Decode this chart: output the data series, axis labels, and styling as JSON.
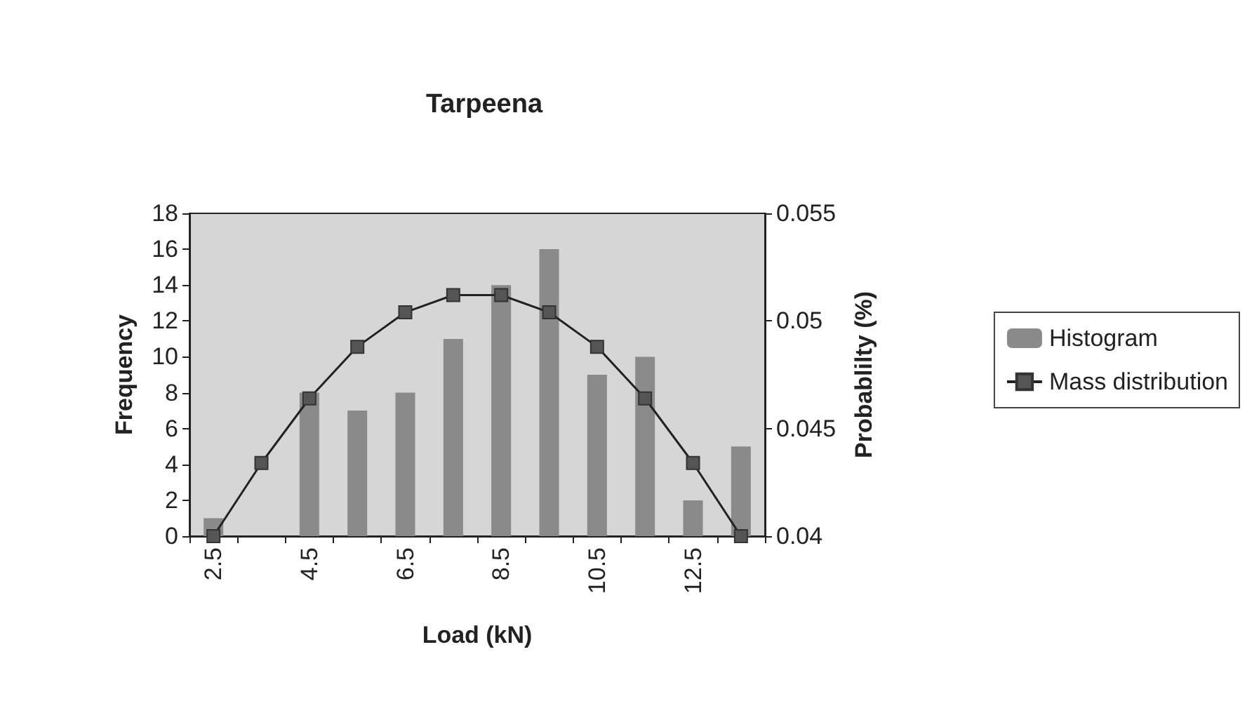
{
  "chart_data": {
    "type": "bar",
    "title": "Tarpeena",
    "xlabel": "Load (kN)",
    "ylabel": "Frequency",
    "y2label": "Probablilty (%)",
    "categories": [
      "2.5",
      null,
      "4.5",
      null,
      "6.5",
      null,
      "8.5",
      null,
      "10.5",
      null,
      "12.5",
      null
    ],
    "series": [
      {
        "name": "Histogram",
        "color": "#8a8a8a",
        "values": [
          1,
          0,
          8,
          7,
          8,
          11,
          14,
          16,
          9,
          10,
          2,
          5
        ]
      },
      {
        "name": "Mass distribution",
        "type": "line",
        "axis": "y2",
        "color": "#555555",
        "marker": "square",
        "values": [
          0.04,
          0.0434,
          0.0464,
          0.0488,
          0.0504,
          0.0512,
          0.0512,
          0.0504,
          0.0488,
          0.0464,
          0.0434,
          0.04
        ]
      }
    ],
    "ylim": [
      0,
      18
    ],
    "yticks": [
      0,
      2,
      4,
      6,
      8,
      10,
      12,
      14,
      16,
      18
    ],
    "y2lim": [
      0.04,
      0.055
    ],
    "y2ticks": [
      0.04,
      0.045,
      0.05,
      0.055
    ],
    "grid": false,
    "legend": "right",
    "line_style": "solid"
  }
}
